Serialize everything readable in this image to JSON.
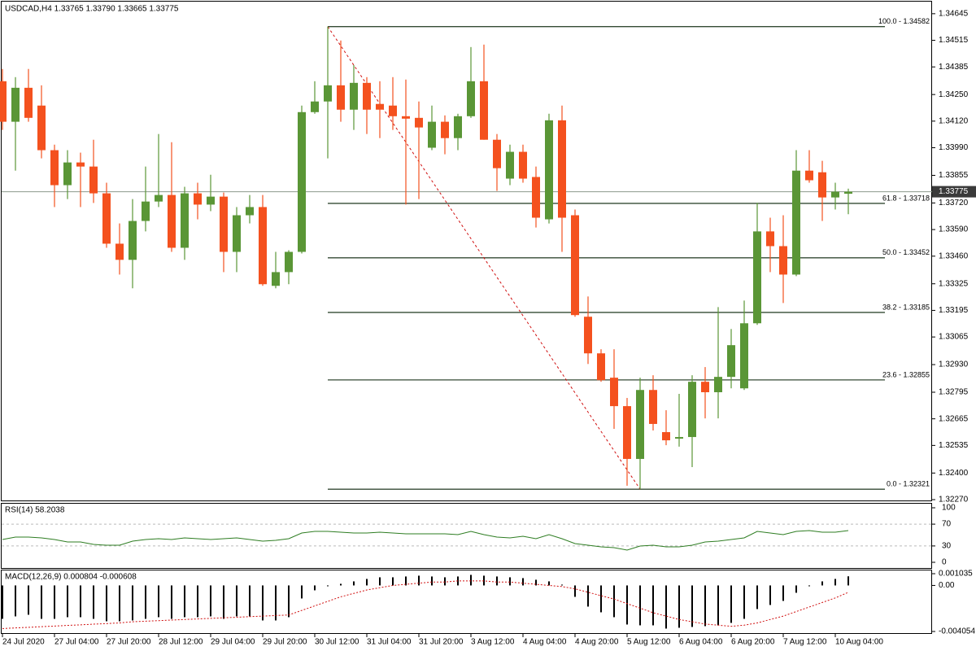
{
  "chart_data": {
    "type": "candlestick",
    "title": "USDCAD,H4  1.33765 1.33790 1.33665 1.33775",
    "bull_color": "#5a9636",
    "bear_color": "#f4511e",
    "open": [
      1.34315,
      1.34117,
      1.34283,
      1.34196,
      1.33978,
      1.33807,
      1.33918,
      1.33898,
      1.33767,
      1.33521,
      1.33442,
      1.33632,
      1.33727,
      1.33759,
      1.33501,
      1.33767,
      1.33712,
      1.33751,
      1.33481,
      1.3366,
      1.337,
      1.33315,
      1.33382,
      1.33481,
      1.34164,
      1.34216,
      1.34295,
      1.34176,
      1.34307,
      1.34204,
      1.34196,
      1.34144,
      1.34136,
      1.3399,
      1.34117,
      1.34037,
      1.34144,
      1.34315,
      1.34029,
      1.33839,
      1.3397,
      1.33847,
      1.3364,
      1.34124,
      1.3366,
      1.33164,
      1.32985,
      1.32866,
      1.32727,
      1.32469,
      1.32806,
      1.326,
      1.32568,
      1.32576,
      1.32846,
      1.32795,
      1.3287,
      1.32814,
      1.33132,
      1.33581,
      1.33509,
      1.3337,
      1.33878,
      1.3387,
      1.33747,
      1.33765
    ],
    "high": [
      1.34375,
      1.34335,
      1.34375,
      1.34295,
      1.34005,
      1.33978,
      1.33966,
      1.34029,
      1.33819,
      1.3362,
      1.33739,
      1.33898,
      1.34057,
      1.34017,
      1.33799,
      1.33819,
      1.33858,
      1.33771,
      1.337,
      1.33759,
      1.33759,
      1.33481,
      1.33489,
      1.34196,
      1.34315,
      1.34582,
      1.34514,
      1.34394,
      1.34335,
      1.34315,
      1.34335,
      1.34323,
      1.34216,
      1.34196,
      1.34148,
      1.34156,
      1.34482,
      1.34494,
      1.34057,
      1.34005,
      1.34005,
      1.33898,
      1.34156,
      1.34196,
      1.33688,
      1.33263,
      1.33005,
      1.33005,
      1.32767,
      1.32866,
      1.32878,
      1.32707,
      1.32787,
      1.32878,
      1.32918,
      1.33211,
      1.33104,
      1.33243,
      1.3372,
      1.33648,
      1.3366,
      1.33978,
      1.33978,
      1.33926,
      1.33819,
      1.3379
    ],
    "low": [
      1.34077,
      1.33878,
      1.34117,
      1.33938,
      1.337,
      1.33739,
      1.337,
      1.3372,
      1.33501,
      1.3337,
      1.33303,
      1.33581,
      1.337,
      1.33481,
      1.33442,
      1.3364,
      1.3368,
      1.33382,
      1.33382,
      1.3362,
      1.33315,
      1.33303,
      1.33323,
      1.33473,
      1.34156,
      1.33938,
      1.34117,
      1.34077,
      1.34057,
      1.34037,
      1.34077,
      1.33712,
      1.33739,
      1.33978,
      1.33958,
      1.33978,
      1.34136,
      1.34029,
      1.33779,
      1.33807,
      1.33819,
      1.336,
      1.3362,
      1.33481,
      1.33164,
      1.32933,
      1.32846,
      1.32616,
      1.32338,
      1.32321,
      1.32608,
      1.32536,
      1.32529,
      1.32429,
      1.32667,
      1.32667,
      1.32814,
      1.32806,
      1.33124,
      1.33382,
      1.33231,
      1.33362,
      1.33819,
      1.33632,
      1.33688,
      1.33665
    ],
    "close": [
      1.34117,
      1.34283,
      1.34136,
      1.33978,
      1.33807,
      1.33918,
      1.33898,
      1.33767,
      1.33521,
      1.33442,
      1.33632,
      1.33727,
      1.33759,
      1.33501,
      1.33767,
      1.33712,
      1.33751,
      1.33481,
      1.3366,
      1.337,
      1.33323,
      1.33382,
      1.33481,
      1.34164,
      1.34216,
      1.34295,
      1.34176,
      1.34307,
      1.34176,
      1.34176,
      1.34144,
      1.34132,
      1.34089,
      1.34117,
      1.34037,
      1.34144,
      1.34315,
      1.34029,
      1.3389,
      1.3397,
      1.33839,
      1.33648,
      1.34124,
      1.33648,
      1.33172,
      1.32985,
      1.32854,
      1.32727,
      1.32469,
      1.32806,
      1.3264,
      1.3256,
      1.32576,
      1.32846,
      1.32795,
      1.3287,
      1.33025,
      1.33132,
      1.33581,
      1.33509,
      1.3337,
      1.33878,
      1.33831,
      1.33747,
      1.33775,
      1.33775
    ],
    "ylim": [
      1.32266,
      1.34712
    ],
    "yticks": [
      1.34645,
      1.34515,
      1.34385,
      {
        "value": 1.3425,
        "label": "1.34250"
      },
      {
        "value": 1.3412,
        "label": "1.34120"
      },
      {
        "value": 1.3399,
        "label": "1.33990"
      },
      1.33855,
      {
        "value": 1.3372,
        "label": "1.33720"
      },
      {
        "value": 1.3359,
        "label": "1.33590"
      },
      {
        "value": 1.3346,
        "label": "1.33460"
      },
      1.33325,
      1.33195,
      1.33065,
      {
        "value": 1.3293,
        "label": "1.32930"
      },
      1.32795,
      1.32665,
      1.32535,
      {
        "value": 1.324,
        "label": "1.32400"
      },
      {
        "value": 1.3227,
        "label": "1.32270"
      }
    ],
    "current_price": 1.33775,
    "fib_color": "#344a34",
    "fib_levels": [
      {
        "value": 1.34582,
        "label": "100.0 - 1.34582"
      },
      {
        "value": 1.33718,
        "label": "61.8 - 1.33718"
      },
      {
        "value": 1.33452,
        "label": "50.0 - 1.33452"
      },
      {
        "value": 1.33185,
        "label": "38.2 - 1.33185"
      },
      {
        "value": 1.32855,
        "label": "23.6 - 1.32855"
      },
      {
        "value": 1.32321,
        "label": "0.0 - 1.32321"
      }
    ],
    "trend_color": "#d01010",
    "x_labels": [
      "24 Jul 2020",
      "27 Jul 04:00",
      "27 Jul 20:00",
      "28 Jul 12:00",
      "29 Jul 04:00",
      "29 Jul 20:00",
      "30 Jul 12:00",
      "31 Jul 04:00",
      "31 Jul 20:00",
      "3 Aug 12:00",
      "4 Aug 04:00",
      "4 Aug 20:00",
      "5 Aug 12:00",
      "6 Aug 04:00",
      "6 Aug 20:00",
      "7 Aug 12:00",
      "10 Aug 04:00"
    ],
    "rsi": {
      "title": "RSI(14) 58.2038",
      "color": "#2e7d22",
      "values": [
        41.8,
        46.3,
        46.3,
        44.8,
        41.8,
        37.3,
        37.3,
        32.8,
        31.3,
        31.3,
        38.8,
        41.8,
        43.3,
        41.8,
        44.8,
        43.3,
        41.8,
        43.3,
        44.8,
        41.8,
        38.8,
        40.3,
        43.3,
        53.7,
        56.7,
        56.7,
        55.2,
        53.7,
        53.7,
        55.2,
        53.7,
        52.2,
        52.2,
        52.2,
        52.2,
        50.7,
        56.7,
        50.7,
        46.3,
        44.8,
        47.8,
        43.3,
        50.7,
        43.3,
        34.3,
        31.3,
        28.4,
        26.9,
        22.4,
        29.9,
        31.3,
        28.4,
        28.4,
        31.3,
        37.3,
        38.8,
        41.8,
        44.8,
        56.7,
        53.7,
        50.7,
        56.7,
        58.2,
        55.2,
        55.2,
        58.2038
      ],
      "ylim": [
        0,
        100
      ],
      "yticks": [
        100,
        70,
        30,
        0
      ],
      "levels": [
        70,
        30
      ]
    },
    "macd": {
      "title": "MACD(12,26,9) 0.000804 -0.000608",
      "hist_color": "#000000",
      "signal_color": "#d01010",
      "histogram": [
        -0.00294,
        -0.002725,
        -0.002581,
        -0.00294,
        -0.00294,
        -0.002796,
        -0.002796,
        -0.00294,
        -0.003155,
        -0.003155,
        -0.003083,
        -0.00294,
        -0.002796,
        -0.00294,
        -0.002796,
        -0.002796,
        -0.002725,
        -0.00294,
        -0.002725,
        -0.002725,
        -0.003083,
        -0.003083,
        -0.002796,
        -0.001147,
        -0.00043,
        -7.2e-05,
        0.000143,
        0.000358,
        0.000574,
        0.000717,
        0.000717,
        0.000789,
        0.00086,
        0.000789,
        0.000717,
        0.000789,
        0.000932,
        0.00086,
        0.000789,
        0.000717,
        0.000645,
        0.000502,
        0.000358,
        7.2e-05,
        -0.001004,
        -0.001864,
        -0.002366,
        -0.002796,
        -0.003442,
        -0.003514,
        -0.003514,
        -0.0038,
        -0.003728,
        -0.003657,
        -0.003585,
        -0.003514,
        -0.003298,
        -0.00294,
        -0.002079,
        -0.001721,
        -0.001362,
        -0.000645,
        -7.2e-05,
        0.000358,
        0.000574,
        0.000804
      ],
      "signal": [
        -0.0038,
        -0.00374,
        -0.00369,
        -0.00363,
        -0.00358,
        -0.00352,
        -0.00347,
        -0.00341,
        -0.00336,
        -0.0033,
        -0.0032,
        -0.00315,
        -0.0031,
        -0.00305,
        -0.003,
        -0.00295,
        -0.0029,
        -0.00285,
        -0.0028,
        -0.00275,
        -0.0027,
        -0.00265,
        -0.0026,
        -0.0022,
        -0.0018,
        -0.0014,
        -0.001,
        -0.0007,
        -0.0004,
        -0.0002,
        0,
        0.0001,
        0.0002,
        0.0003,
        0.0003,
        0.0004,
        0.0004,
        0.0004,
        0.0003,
        0.0003,
        0.0002,
        0.0001,
        0,
        -0.0001,
        -0.0003,
        -0.0006,
        -0.0009,
        -0.0012,
        -0.0016,
        -0.002,
        -0.0024,
        -0.0027,
        -0.003,
        -0.0032,
        -0.0034,
        -0.0035,
        -0.0036,
        -0.0035,
        -0.0033,
        -0.003,
        -0.0027,
        -0.0023,
        -0.0019,
        -0.0015,
        -0.0011,
        -0.000608
      ],
      "ylim": [
        -0.004054,
        0.001035
      ],
      "yticks": [
        0.001035,
        {
          "value": 0,
          "label": "0.00"
        },
        -0.004054
      ]
    }
  }
}
